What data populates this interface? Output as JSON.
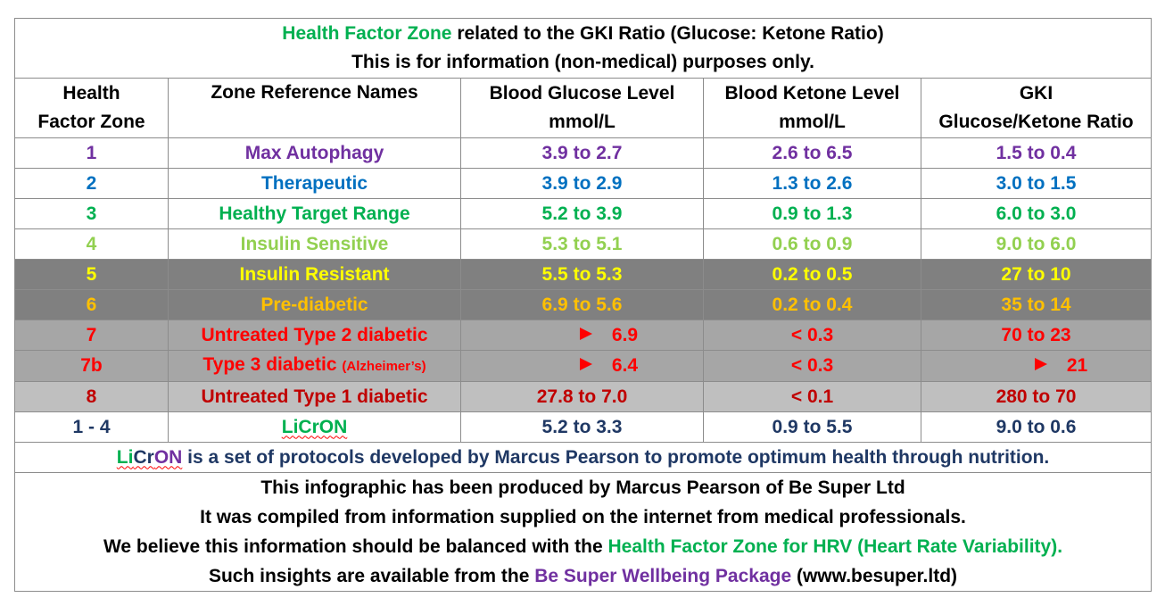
{
  "title": {
    "part1": "Health Factor Zone",
    "part2": " related to the GKI Ratio (Glucose: Ketone Ratio)",
    "line2": "This is for information (non-medical) purposes only."
  },
  "headers": {
    "zone_l1": "Health",
    "zone_l2": "Factor Zone",
    "names": "Zone Reference Names",
    "glucose_l1": "Blood Glucose Level",
    "glucose_l2": "mmol/L",
    "ketone_l1": "Blood Ketone Level",
    "ketone_l2": "mmol/L",
    "gki_l1": "GKI",
    "gki_l2": "Glucose/Ketone Ratio"
  },
  "rows": [
    {
      "zone": "1",
      "name": "Max Autophagy",
      "glucose": "3.9 to 2.7",
      "ketone": "2.6 to 6.5",
      "gki": "1.5 to 0.4",
      "color": "#7030a0"
    },
    {
      "zone": "2",
      "name": "Therapeutic",
      "glucose": "3.9 to 2.9",
      "ketone": "1.3 to 2.6",
      "gki": "3.0 to 1.5",
      "color": "#0070c0"
    },
    {
      "zone": "3",
      "name": "Healthy Target Range",
      "glucose": "5.2 to 3.9",
      "ketone": "0.9 to 1.3",
      "gki": "6.0 to 3.0",
      "color": "#00b050"
    },
    {
      "zone": "4",
      "name": "Insulin Sensitive",
      "glucose": "5.3 to 5.1",
      "ketone": "0.6 to 0.9",
      "gki": "9.0 to 6.0",
      "color": "#92d050"
    },
    {
      "zone": "5",
      "name": "Insulin Resistant",
      "glucose": "5.5 to 5.3",
      "ketone": "0.2 to 0.5",
      "gki": "27 to 10",
      "color": "#ffff00",
      "bg": "#808080"
    },
    {
      "zone": "6",
      "name": "Pre-diabetic",
      "glucose": "6.9 to 5.6",
      "ketone": "0.2 to 0.4",
      "gki": "35 to 14",
      "color": "#ffc000",
      "bg": "#808080"
    },
    {
      "zone": "7",
      "name": "Untreated Type 2 diabetic",
      "glucose": "6.9",
      "ketone": "< 0.3",
      "gki": "70 to 23",
      "color": "#ff0000",
      "bg": "#a6a6a6"
    },
    {
      "zone": "7b",
      "name": "Type 3 diabetic",
      "name_note": "(Alzheimer’s)",
      "glucose": "6.4",
      "ketone": "< 0.3",
      "gki": "21",
      "color": "#ff0000",
      "bg": "#a6a6a6"
    },
    {
      "zone": "8",
      "name": "Untreated Type 1 diabetic",
      "glucose": "27.8 to 7.0",
      "ketone": "< 0.1",
      "gki": "280 to 70",
      "color": "#c00000",
      "bg": "#bfbfbf"
    },
    {
      "zone": "1 - 4",
      "name": "LiCrON",
      "glucose": "5.2 to 3.3",
      "ketone": "0.9 to 5.5",
      "gki": "9.0 to 0.6",
      "color": "#1f3864"
    }
  ],
  "licron_note": {
    "li": "Li",
    "cr": "Cr",
    "on": "ON",
    "rest": " is a set of protocols developed by Marcus Pearson to promote optimum health through nutrition."
  },
  "footer": {
    "line1": "This infographic has been produced by Marcus Pearson of Be Super Ltd",
    "line2": "It was compiled from information supplied on the internet from medical professionals.",
    "line3_a": "We believe this information should be balanced with the ",
    "line3_b": "Health Factor Zone for HRV (Heart Rate Variability).",
    "line4_a": "Such insights are available from the ",
    "line4_b": "Be Super Wellbeing Package",
    "line4_c": " (www.besuper.ltd)"
  },
  "colors": {
    "purple": "#7030a0",
    "blue": "#0070c0",
    "green": "#00b050",
    "light_green": "#92d050",
    "yellow": "#ffff00",
    "orange": "#ffc000",
    "red": "#ff0000",
    "dark_red": "#c00000",
    "navy": "#1f3864",
    "grey_dark": "#808080",
    "grey_mid": "#a6a6a6",
    "grey_light": "#bfbfbf"
  }
}
